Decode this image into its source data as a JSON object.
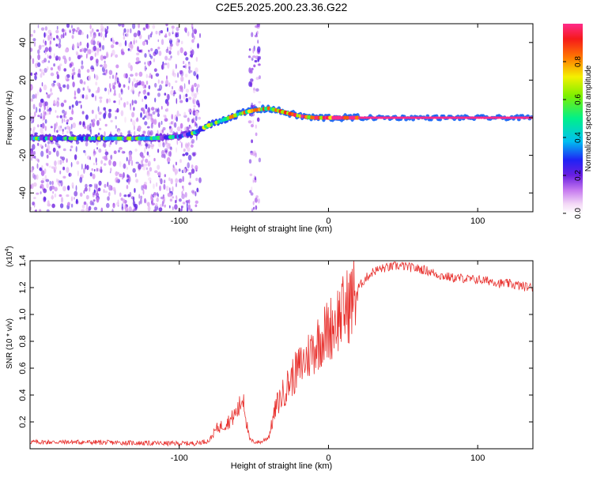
{
  "title": "C2E5.2025.200.23.36.G22",
  "chart_data": [
    {
      "type": "heatmap",
      "xlabel": "Height of straight line (km)",
      "ylabel": "Frequency (Hz)",
      "xlim": [
        -200,
        137
      ],
      "ylim": [
        -50,
        50
      ],
      "x_ticks": [
        -100,
        0,
        100
      ],
      "y_ticks": [
        -40,
        -20,
        0,
        20,
        40
      ],
      "colorbar": {
        "label": "Normalized spectral amplitude",
        "range": [
          0,
          1
        ],
        "ticks": [
          "0.0",
          "0.2",
          "0.4",
          "0.6",
          "0.8"
        ],
        "tick_values": [
          0,
          0.2,
          0.4,
          0.6,
          0.8
        ]
      },
      "ridge": {
        "x": [
          -200,
          -160,
          -120,
          -100,
          -90,
          -80,
          -70,
          -60,
          -50,
          -40,
          -30,
          -20,
          -10,
          0,
          10,
          20,
          137
        ],
        "frequency": [
          -11,
          -11,
          -11,
          -10,
          -8,
          -4,
          -1,
          2,
          4,
          5,
          3,
          1,
          0,
          0,
          0,
          0,
          0
        ],
        "amplitude": [
          0.4,
          0.45,
          0.4,
          0.35,
          0.45,
          0.55,
          0.6,
          0.6,
          0.65,
          0.7,
          0.75,
          0.8,
          0.85,
          0.9,
          0.95,
          1.0,
          1.0
        ]
      },
      "noise_regions": [
        {
          "x_range": [
            -200,
            -86
          ],
          "level": 0.2
        },
        {
          "x_range": [
            -53,
            -46
          ],
          "level": 0.2
        }
      ]
    },
    {
      "type": "line",
      "xlabel": "Height of straight line (km)",
      "ylabel": "SNR (10 * v/v)",
      "y_multiplier": "(x10",
      "y_multiplier_exp": "4",
      "y_multiplier_close": ")",
      "xlim": [
        -200,
        137
      ],
      "ylim": [
        0,
        14000
      ],
      "x_ticks": [
        -100,
        0,
        100
      ],
      "y_ticks": [
        2000,
        4000,
        6000,
        8000,
        10000,
        12000,
        14000
      ],
      "y_tick_labels": [
        "0.2",
        "0.4",
        "0.6",
        "0.8",
        "1.0",
        "1.2",
        "1.4"
      ],
      "color": "#e8322f",
      "series": [
        {
          "x": [
            -200,
            -170,
            -140,
            -110,
            -90,
            -80,
            -75,
            -70,
            -65,
            -60,
            -57,
            -55,
            -53,
            -50,
            -45,
            -40,
            -35,
            -30,
            -25,
            -20,
            -15,
            -10,
            -5,
            0,
            5,
            10,
            15,
            20,
            25,
            30,
            35,
            40,
            45,
            50,
            55,
            60,
            65,
            70,
            75,
            80,
            85,
            90,
            95,
            100,
            105,
            110,
            115,
            120,
            125,
            130,
            137
          ],
          "y": [
            500,
            500,
            450,
            400,
            400,
            600,
            1500,
            1800,
            2200,
            3000,
            4000,
            2000,
            700,
            500,
            500,
            900,
            3200,
            4200,
            5200,
            6000,
            6700,
            7500,
            8300,
            8800,
            9600,
            10200,
            11000,
            12000,
            12700,
            13200,
            13400,
            13500,
            13600,
            13600,
            13500,
            13400,
            13300,
            13100,
            12900,
            12800,
            12700,
            12700,
            12600,
            12600,
            12500,
            12500,
            12300,
            12300,
            12200,
            12100,
            12000
          ]
        }
      ]
    }
  ]
}
